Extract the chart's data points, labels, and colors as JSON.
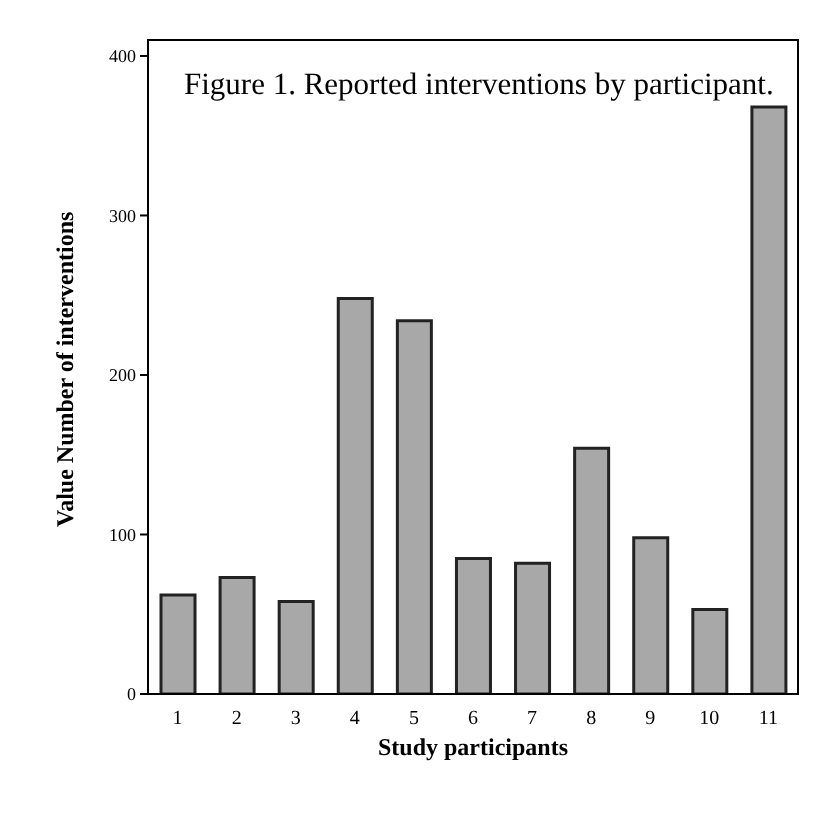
{
  "chart_data": {
    "type": "bar",
    "title": "Figure 1. Reported interventions by participant.",
    "xlabel": "Study participants",
    "ylabel": "Value Number of interventions",
    "categories": [
      "1",
      "2",
      "3",
      "4",
      "5",
      "6",
      "7",
      "8",
      "9",
      "10",
      "11"
    ],
    "values": [
      62,
      73,
      58,
      248,
      234,
      85,
      82,
      154,
      98,
      53,
      368
    ],
    "color": "#a8a8a8",
    "ylim": [
      0,
      410
    ],
    "yticks": [
      0,
      100,
      200,
      300,
      400
    ],
    "grid": false
  }
}
